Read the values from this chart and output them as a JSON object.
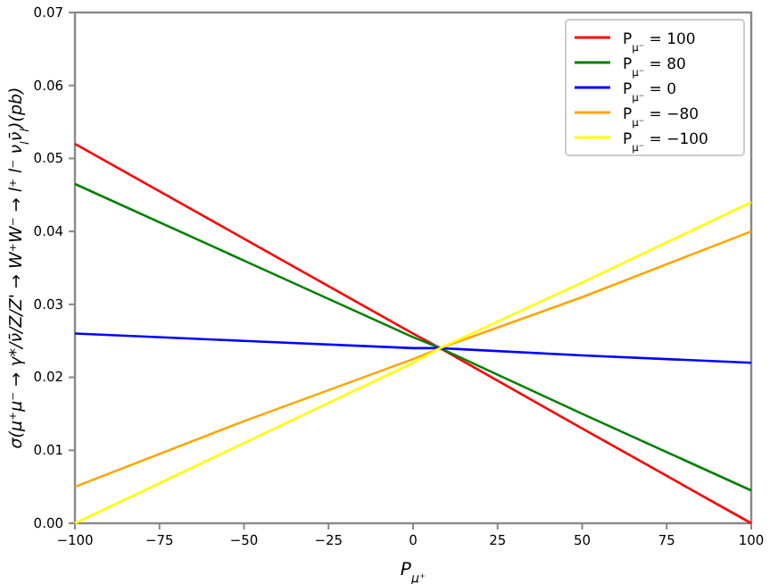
{
  "chart_data": {
    "type": "line",
    "xlabel": "P$_{μ⁺}$",
    "ylabel": "σ(μ⁺μ⁻ → γ*/ν̄/Z/Z' → W⁺W⁻ → l⁺ l⁻ ν$_{l}$ν̄$_{l}$)(pb)",
    "x": [
      -100,
      -50,
      0,
      8,
      50,
      100
    ],
    "series": [
      {
        "name": "P$_{μ⁻}$ = 100",
        "color": "#ff0000",
        "values": [
          0.052,
          0.039,
          0.026,
          0.024,
          0.013,
          0.0
        ]
      },
      {
        "name": "P$_{μ⁻}$ = 80",
        "color": "#008000",
        "values": [
          0.0465,
          0.036,
          0.0255,
          0.024,
          0.015,
          0.0045
        ]
      },
      {
        "name": "P$_{μ⁻}$ = 0",
        "color": "#0000ff",
        "values": [
          0.026,
          0.025,
          0.024,
          0.024,
          0.023,
          0.022
        ]
      },
      {
        "name": "P$_{μ⁻}$ = −80",
        "color": "#ffa500",
        "values": [
          0.005,
          0.014,
          0.0225,
          0.024,
          0.031,
          0.04
        ]
      },
      {
        "name": "P$_{μ⁻}$ = −100",
        "color": "#ffff00",
        "values": [
          0.0,
          0.011,
          0.022,
          0.024,
          0.033,
          0.044
        ]
      }
    ],
    "xlim": [
      -100,
      100
    ],
    "xticks": [
      -100,
      -75,
      -50,
      -25,
      0,
      25,
      50,
      75,
      100
    ],
    "ylim": [
      0,
      0.07
    ],
    "yticks": [
      {
        "value": 0,
        "label": "0.00"
      },
      {
        "value": 0.01,
        "label": "0.01"
      },
      {
        "value": 0.02,
        "label": "0.02"
      },
      {
        "value": 0.03,
        "label": "0.03"
      },
      {
        "value": 0.04,
        "label": "0.04"
      },
      {
        "value": 0.05,
        "label": "0.05"
      },
      {
        "value": 0.06,
        "label": "0.06"
      },
      {
        "value": 0.07,
        "label": "0.07"
      }
    ],
    "grid": false,
    "legend": "top right",
    "line_style": "solid",
    "marker": "none"
  }
}
